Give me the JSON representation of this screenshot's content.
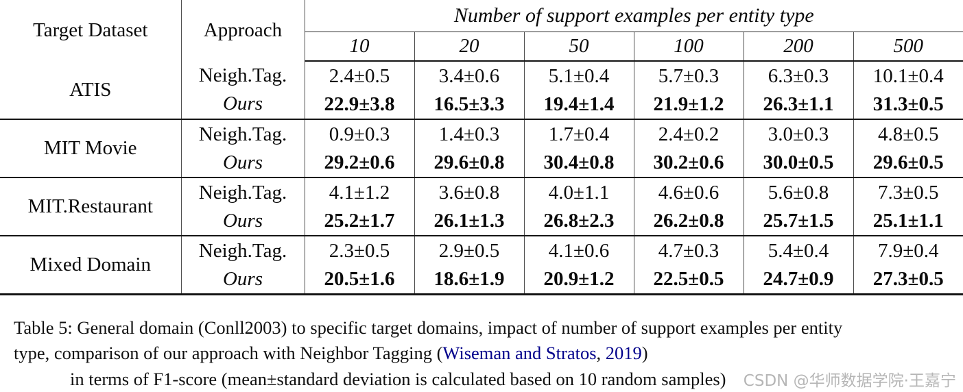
{
  "table": {
    "header": {
      "target_dataset": "Target Dataset",
      "approach": "Approach",
      "support_title": "Number of support examples per entity type",
      "support_counts": [
        "10",
        "20",
        "50",
        "100",
        "200",
        "500"
      ]
    },
    "approach_labels": {
      "baseline": "Neigh.Tag.",
      "ours": "Ours"
    },
    "rows": [
      {
        "dataset": "ATIS",
        "baseline": [
          "2.4±0.5",
          "3.4±0.6",
          "5.1±0.4",
          "5.7±0.3",
          "6.3±0.3",
          "10.1±0.4"
        ],
        "ours": [
          "22.9±3.8",
          "16.5±3.3",
          "19.4±1.4",
          "21.9±1.2",
          "26.3±1.1",
          "31.3±0.5"
        ]
      },
      {
        "dataset": "MIT Movie",
        "baseline": [
          "0.9±0.3",
          "1.4±0.3",
          "1.7±0.4",
          "2.4±0.2",
          "3.0±0.3",
          "4.8±0.5"
        ],
        "ours": [
          "29.2±0.6",
          "29.6±0.8",
          "30.4±0.8",
          "30.2±0.6",
          "30.0±0.5",
          "29.6±0.5"
        ]
      },
      {
        "dataset": "MIT.Restaurant",
        "baseline": [
          "4.1±1.2",
          "3.6±0.8",
          "4.0±1.1",
          "4.6±0.6",
          "5.6±0.8",
          "7.3±0.5"
        ],
        "ours": [
          "25.2±1.7",
          "26.1±1.3",
          "26.8±2.3",
          "26.2±0.8",
          "25.7±1.5",
          "25.1±1.1"
        ]
      },
      {
        "dataset": "Mixed Domain",
        "baseline": [
          "2.3±0.5",
          "2.9±0.5",
          "4.1±0.6",
          "4.7±0.3",
          "5.4±0.4",
          "7.9±0.4"
        ],
        "ours": [
          "20.5±1.6",
          "18.6±1.9",
          "20.9±1.2",
          "22.5±0.5",
          "24.7±0.9",
          "27.3±0.5"
        ]
      }
    ]
  },
  "caption": {
    "line1": "Table 5: General domain (Conll2003) to specific target domains, impact of number of support examples per entity",
    "line2_prefix": "type, comparison of our approach with Neighbor Tagging (",
    "line2_link_authors": "Wiseman and Stratos",
    "line2_sep": ", ",
    "line2_link_year": "2019",
    "line2_suffix": ")",
    "line3": "in terms of F1-score (mean±standard deviation is calculated based on 10 random samples)"
  },
  "watermark": "CSDN @华师数据学院·王嘉宁",
  "colors": {
    "link": "#00008B",
    "watermark": "#b6b6b6",
    "rule": "#141414"
  }
}
